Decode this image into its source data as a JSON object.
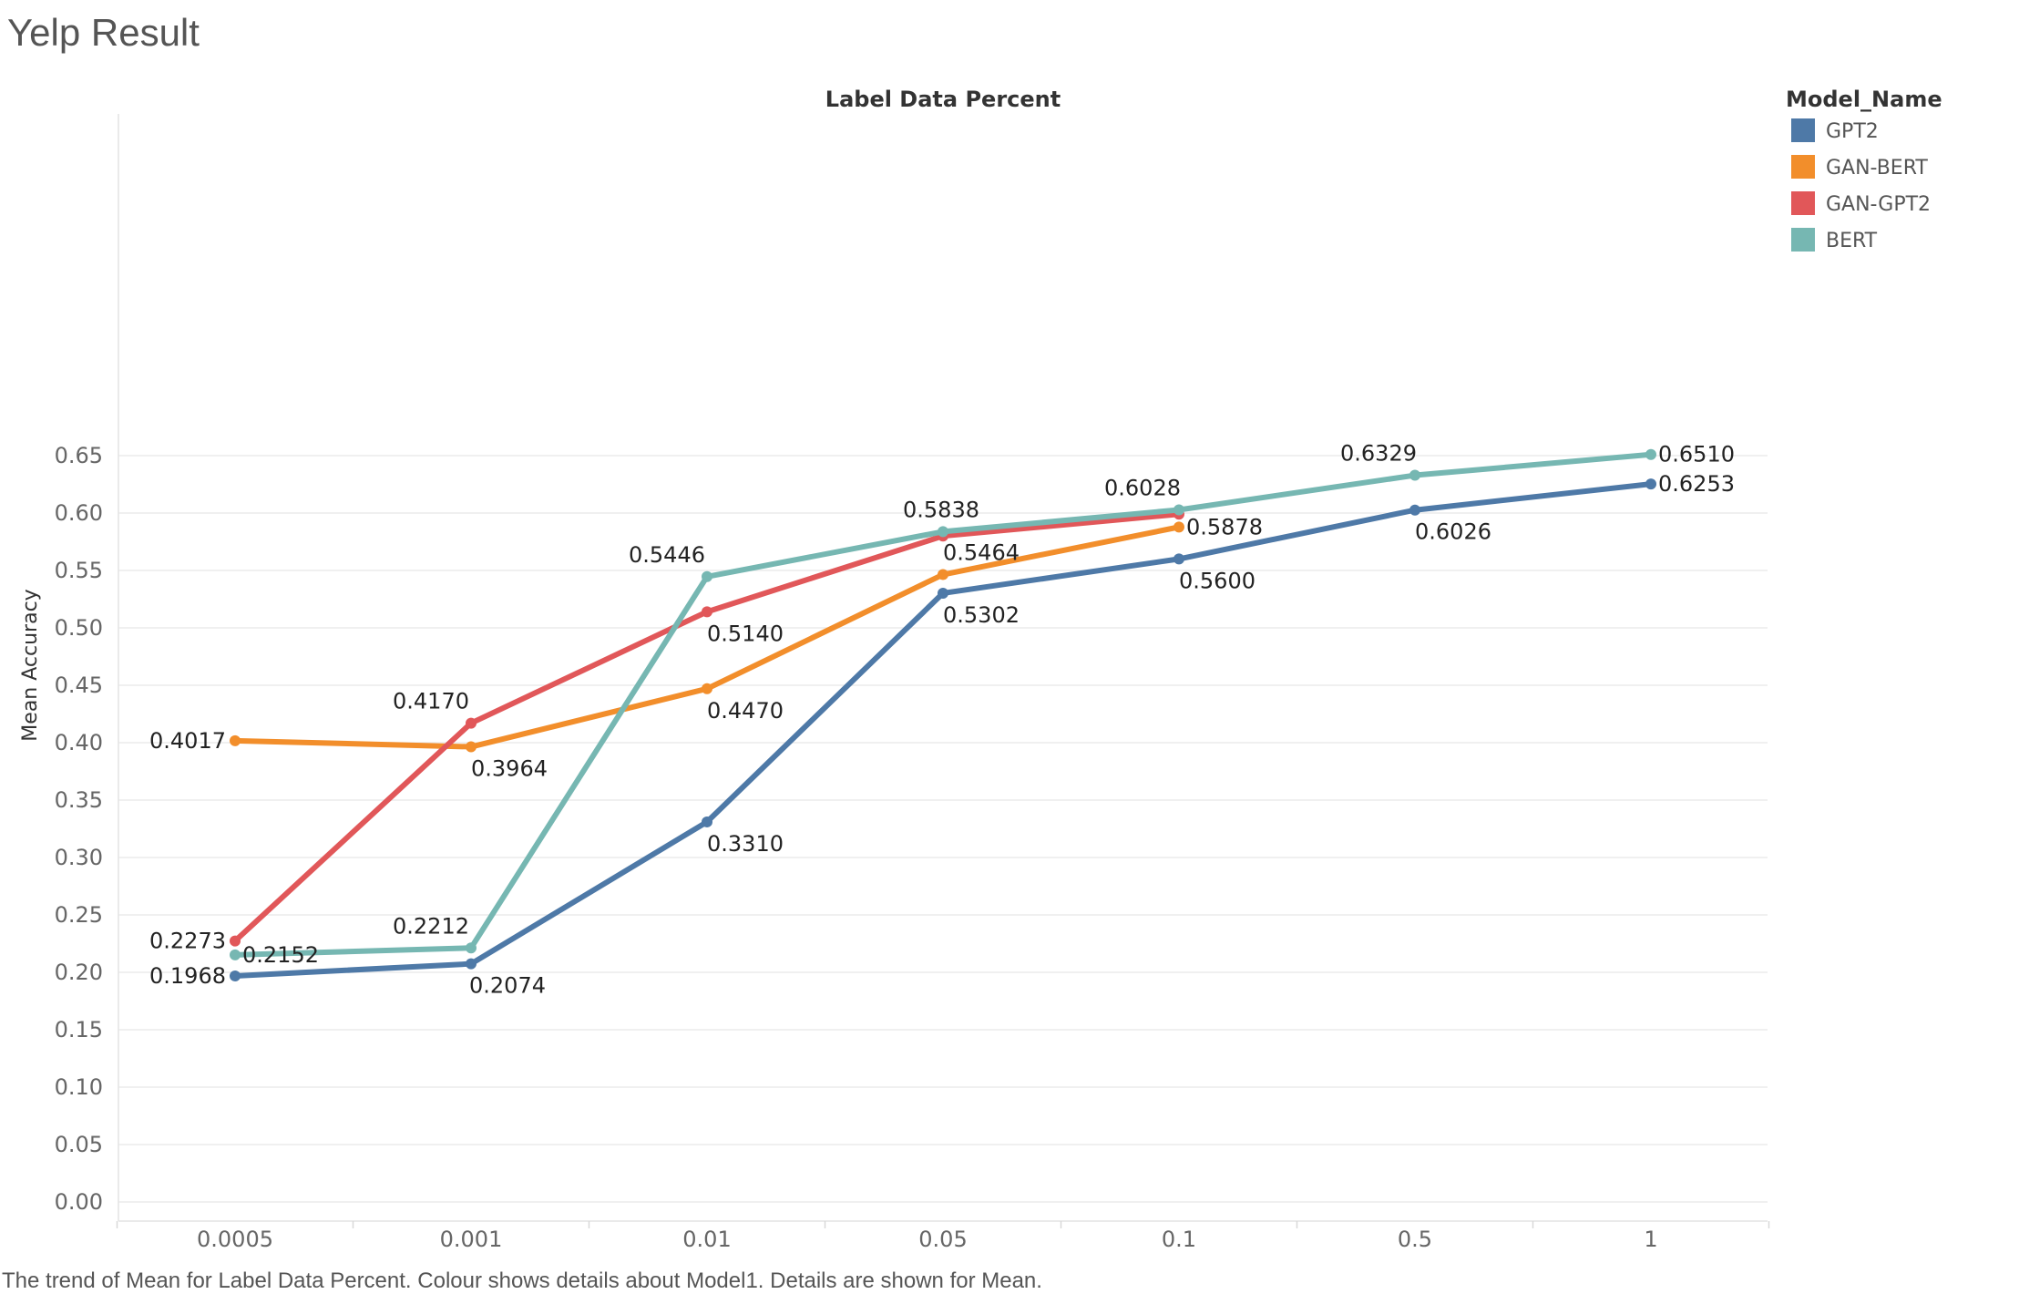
{
  "page": {
    "title": "Yelp Result",
    "caption": "The trend of Mean for Label Data Percent. Colour shows details about Model1. Details are shown for Mean."
  },
  "chart_data": {
    "type": "line",
    "xlabel": "Label Data Percent",
    "ylabel": "Mean Accuracy",
    "categories": [
      "0.0005",
      "0.001",
      "0.01",
      "0.05",
      "0.1",
      "0.5",
      "1"
    ],
    "ylim": [
      0,
      0.68
    ],
    "yticks": [
      "0.00",
      "0.05",
      "0.10",
      "0.15",
      "0.20",
      "0.25",
      "0.30",
      "0.35",
      "0.40",
      "0.45",
      "0.50",
      "0.55",
      "0.60",
      "0.65"
    ],
    "grid": true,
    "legend": {
      "title": "Model_Name",
      "position": "right"
    },
    "series": [
      {
        "name": "GPT2",
        "color": "#4e79a7",
        "values": [
          0.1968,
          0.2074,
          0.331,
          0.5302,
          0.56,
          0.6026,
          0.6253
        ],
        "labels": [
          "0.1968",
          "0.2074",
          "0.3310",
          "0.5302",
          "0.5600",
          "0.6026",
          "0.6253"
        ]
      },
      {
        "name": "GAN-BERT",
        "color": "#f28e2b",
        "values": [
          0.4017,
          0.3964,
          0.447,
          0.5464,
          0.5878,
          null,
          null
        ],
        "labels": [
          "0.4017",
          "0.3964",
          "0.4470",
          "0.5464",
          "0.5878",
          null,
          null
        ]
      },
      {
        "name": "GAN-GPT2",
        "color": "#e15759",
        "values": [
          0.2273,
          0.417,
          0.514,
          0.58,
          0.599,
          null,
          null
        ],
        "labels": [
          "0.2273",
          "0.4170",
          "0.5140",
          null,
          null,
          null,
          null
        ]
      },
      {
        "name": "BERT",
        "color": "#76b7b2",
        "values": [
          0.2152,
          0.2212,
          0.5446,
          0.5838,
          0.6028,
          0.6329,
          0.651
        ],
        "labels": [
          "0.2152",
          "0.2212",
          "0.5446",
          "0.5838",
          "0.6028",
          "0.6329",
          "0.6510"
        ]
      }
    ]
  }
}
